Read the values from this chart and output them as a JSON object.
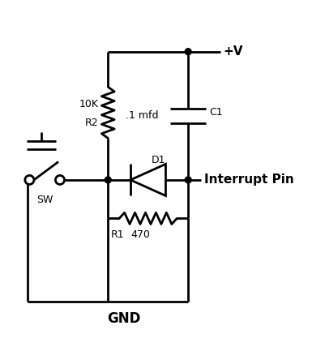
{
  "bg_color": "#ffffff",
  "line_color": "#000000",
  "lw": 2.0,
  "labels": {
    "vplus": "+V",
    "gnd": "GND",
    "c1": "C1",
    "c1_val": ".1 mfd",
    "r1": "R1",
    "r1_val": "470",
    "r2": "R2",
    "r2_val": "10K",
    "d1": "D1",
    "sw": "SW",
    "interrupt": "Interrupt Pin"
  }
}
